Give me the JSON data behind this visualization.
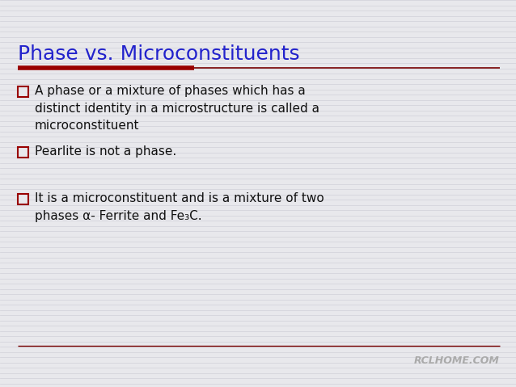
{
  "title": "Phase vs. Microconstituents",
  "title_color": "#2222cc",
  "title_fontsize": 18,
  "background_color": "#e8e8ec",
  "stripe_color": "#d0d0d8",
  "divider_left_color": "#990000",
  "divider_right_color": "#770000",
  "bullet_color": "#990000",
  "text_color": "#111111",
  "bullet_items": [
    "A phase or a mixture of phases which has a\ndistinct identity in a microstructure is called a\nmicroconstituent",
    "Pearlite is not a phase.",
    "It is a microconstituent and is a mixture of two\nphases α- Ferrite and Fe₃C."
  ],
  "footer_text": "RCLHOME.COM",
  "footer_color": "#aaaaaa",
  "footer_fontsize": 9,
  "text_fontsize": 11,
  "font_family": "DejaVu Sans"
}
